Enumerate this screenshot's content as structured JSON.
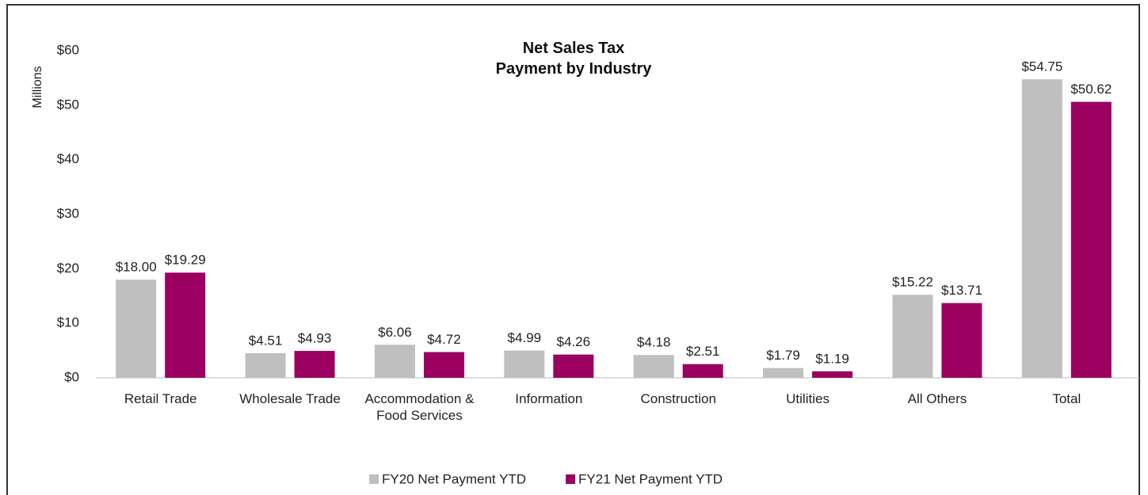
{
  "chart_data": {
    "type": "bar",
    "title": "Net Sales Tax\nPayment by Industry",
    "y_axis_label": "Millions",
    "categories": [
      "Retail Trade",
      "Wholesale Trade",
      "Accommodation & Food Services",
      "Information",
      "Construction",
      "Utilities",
      "All Others",
      "Total"
    ],
    "series": [
      {
        "name": "FY20 Net Payment YTD",
        "color": "#bfbfbf",
        "values": [
          18.0,
          4.51,
          6.06,
          4.99,
          4.18,
          1.79,
          15.22,
          54.75
        ],
        "value_labels": [
          "$18.00",
          "$4.51",
          "$6.06",
          "$4.99",
          "$4.18",
          "$1.79",
          "$15.22",
          "$54.75"
        ]
      },
      {
        "name": "FY21 Net Payment YTD",
        "color": "#9b0060",
        "values": [
          19.29,
          4.93,
          4.72,
          4.26,
          2.51,
          1.19,
          13.71,
          50.62
        ],
        "value_labels": [
          "$19.29",
          "$4.93",
          "$4.72",
          "$4.26",
          "$2.51",
          "$1.19",
          "$13.71",
          "$50.62"
        ]
      }
    ],
    "ylim": [
      0,
      60
    ],
    "yticks": [
      {
        "value": 0,
        "label": "$0"
      },
      {
        "value": 10,
        "label": "$10"
      },
      {
        "value": 20,
        "label": "$20"
      },
      {
        "value": 30,
        "label": "$30"
      },
      {
        "value": 40,
        "label": "$40"
      },
      {
        "value": 50,
        "label": "$50"
      },
      {
        "value": 60,
        "label": "$60"
      }
    ],
    "grid": false,
    "legend": "bottom"
  }
}
